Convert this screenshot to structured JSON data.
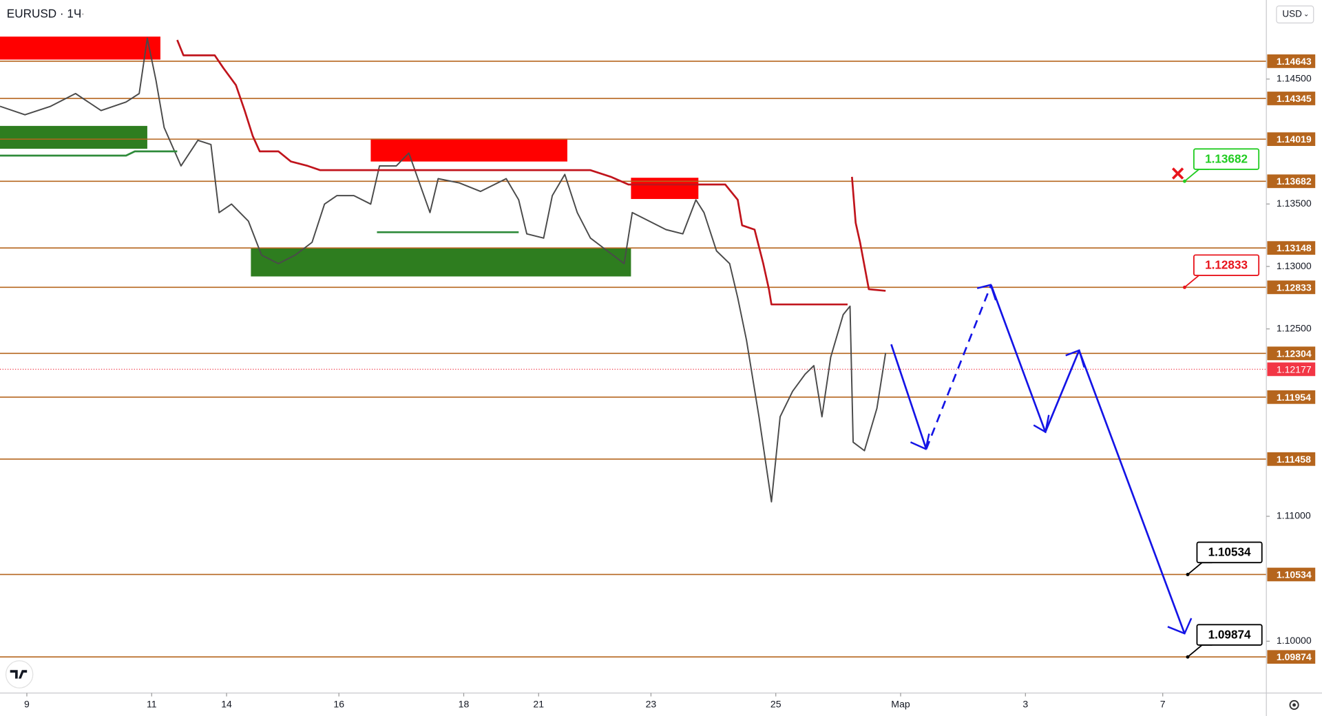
{
  "chart_data": {
    "type": "line",
    "title": "EURUSD · 1Ч",
    "currency": "USD",
    "xlim": [
      -0.43,
      19.86
    ],
    "ylim": [
      1.09585,
      1.15133
    ],
    "xticks": [
      {
        "value": 0,
        "label": "9"
      },
      {
        "value": 2,
        "label": "11"
      },
      {
        "value": 3.2,
        "label": "14"
      },
      {
        "value": 5,
        "label": "16"
      },
      {
        "value": 7,
        "label": "18"
      },
      {
        "value": 8.2,
        "label": "21"
      },
      {
        "value": 10,
        "label": "23"
      },
      {
        "value": 12,
        "label": "25"
      },
      {
        "value": 14,
        "label": "Мар"
      },
      {
        "value": 16,
        "label": "3"
      },
      {
        "value": 18.2,
        "label": "7"
      }
    ],
    "yticks": [
      {
        "value": 1.145,
        "label": "1.14500"
      },
      {
        "value": 1.135,
        "label": "1.13500"
      },
      {
        "value": 1.13,
        "label": "1.13000"
      },
      {
        "value": 1.125,
        "label": "1.12500"
      },
      {
        "value": 1.11,
        "label": "1.11000"
      },
      {
        "value": 1.1,
        "label": "1.10000"
      }
    ],
    "levels": [
      1.14643,
      1.14345,
      1.14019,
      1.13682,
      1.13148,
      1.12833,
      1.12304,
      1.11954,
      1.11458,
      1.10534,
      1.09874
    ],
    "level_color": "#b5651d",
    "last_price": 1.12177,
    "last_price_color": "#f23645",
    "zones": [
      {
        "x": [
          -0.43,
          2.14
        ],
        "y": [
          1.14656,
          1.1484
        ],
        "color": "#ff0000"
      },
      {
        "x": [
          5.51,
          8.66
        ],
        "y": [
          1.1384,
          1.14023
        ],
        "color": "#ff0000"
      },
      {
        "x": [
          9.68,
          10.76
        ],
        "y": [
          1.1354,
          1.1371
        ],
        "color": "#ff0000"
      },
      {
        "x": [
          -0.43,
          1.93
        ],
        "y": [
          1.13942,
          1.14125
        ],
        "color": "#2e7d1f"
      },
      {
        "x": [
          3.59,
          9.68
        ],
        "y": [
          1.1292,
          1.13145
        ],
        "color": "#2e7d1f"
      }
    ],
    "series": [
      {
        "color": "#4a4a4a",
        "dash": false,
        "x": [
          -0.43,
          -0.03,
          0.38,
          0.78,
          1.19,
          1.59,
          1.8,
          1.93,
          2.07,
          2.2,
          2.47,
          2.74,
          2.95,
          3.08,
          3.28,
          3.55,
          3.76,
          4.03,
          4.3,
          4.57,
          4.77,
          4.97,
          5.24,
          5.51,
          5.65,
          5.92,
          6.12,
          6.46,
          6.59,
          6.93,
          7.27,
          7.68,
          7.88,
          8.01,
          8.28,
          8.42,
          8.62,
          8.82,
          9.03,
          9.3,
          9.57,
          9.7,
          9.97,
          10.24,
          10.51,
          10.72,
          10.85,
          11.05,
          11.26,
          11.39,
          11.53,
          11.73,
          11.93,
          12.07,
          12.27,
          12.47,
          12.61,
          12.74,
          12.88,
          13.08,
          13.19,
          13.24,
          13.42,
          13.62,
          13.76
        ],
        "values": [
          1.14282,
          1.14214,
          1.14282,
          1.14384,
          1.14248,
          1.14316,
          1.14384,
          1.14827,
          1.14486,
          1.14112,
          1.13805,
          1.1401,
          1.13976,
          1.13431,
          1.13499,
          1.13363,
          1.13091,
          1.13023,
          1.13091,
          1.13193,
          1.13499,
          1.13567,
          1.13567,
          1.13499,
          1.13805,
          1.13805,
          1.13908,
          1.13431,
          1.13703,
          1.13669,
          1.13601,
          1.13703,
          1.13533,
          1.13261,
          1.13227,
          1.13567,
          1.13737,
          1.13431,
          1.13227,
          1.13125,
          1.13023,
          1.13431,
          1.13363,
          1.13295,
          1.13261,
          1.13533,
          1.13431,
          1.13125,
          1.13023,
          1.1275,
          1.1241,
          1.11797,
          1.11116,
          1.11797,
          1.12001,
          1.12137,
          1.12206,
          1.11797,
          1.12274,
          1.12614,
          1.12682,
          1.11593,
          1.11525,
          1.11865,
          1.12308
        ]
      },
      {
        "color": "#c0141c",
        "dash": false,
        "x": [
          2.41,
          2.51,
          3.01,
          3.15,
          3.35,
          3.49,
          3.62,
          3.73,
          4.03,
          4.23,
          4.5,
          4.7,
          5.51,
          7.95,
          8.49,
          9.03,
          9.36,
          9.64,
          11.19,
          11.39,
          11.46,
          11.66,
          11.8,
          11.89,
          11.93,
          13.15,
          null,
          13.22,
          13.28,
          13.35,
          13.49,
          13.76
        ],
        "values": [
          1.14813,
          1.1469,
          1.1469,
          1.14588,
          1.14452,
          1.14248,
          1.14044,
          1.13921,
          1.13921,
          1.1384,
          1.13805,
          1.13771,
          1.13771,
          1.13771,
          1.13771,
          1.13771,
          1.13717,
          1.13656,
          1.13656,
          1.13533,
          1.13329,
          1.13295,
          1.13023,
          1.12818,
          1.12696,
          1.12696,
          null,
          1.13717,
          1.13349,
          1.13193,
          1.12818,
          1.12805
        ]
      },
      {
        "color": "#2e8b3a",
        "dash": false,
        "x": [
          -0.43,
          1.59,
          1.73,
          2.41,
          null,
          5.61,
          7.88
        ],
        "values": [
          1.13887,
          1.13887,
          1.13921,
          1.13921,
          null,
          1.13274,
          1.13274
        ]
      },
      {
        "color": "#1414e6",
        "dash": false,
        "x": [
          13.85,
          14.41,
          null,
          15.45,
          16.32,
          16.86,
          18.55
        ],
        "values": [
          1.12376,
          1.11538,
          null,
          1.12852,
          1.11675,
          1.12328,
          1.10061
        ]
      },
      {
        "color": "#1414e6",
        "dash": true,
        "x": [
          14.41,
          15.45
        ],
        "values": [
          1.11538,
          1.12852
        ]
      }
    ],
    "callouts": [
      {
        "x": 18.55,
        "value": 1.13682,
        "color": "#22cc22"
      },
      {
        "x": 18.55,
        "value": 1.12833,
        "color": "#e8141c"
      },
      {
        "x": 18.6,
        "value": 1.10534,
        "color": "#000000"
      },
      {
        "x": 18.6,
        "value": 1.09874,
        "color": "#000000"
      }
    ]
  }
}
